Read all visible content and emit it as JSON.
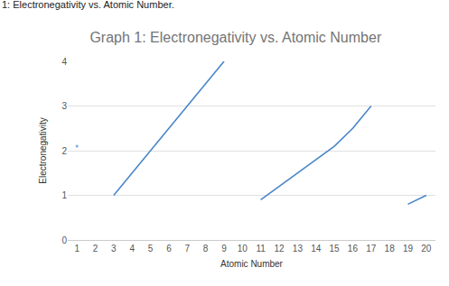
{
  "chart_data": {
    "type": "line",
    "title": "Graph 1: Electronegativity vs. Atomic Number",
    "annotations": [
      "1: Electronegativity vs. Atomic Number."
    ],
    "x_label": "Atomic Number",
    "y_label": "Electronegativity",
    "x": [
      1,
      2,
      3,
      4,
      5,
      6,
      7,
      8,
      9,
      10,
      11,
      12,
      13,
      14,
      15,
      16,
      17,
      18,
      19,
      20
    ],
    "series": [
      {
        "name": "Electronegativity",
        "color": "#4a86c8",
        "marker": "isolated",
        "values": [
          2.1,
          null,
          1.0,
          1.5,
          2.0,
          2.5,
          3.0,
          3.5,
          4.0,
          null,
          0.9,
          1.2,
          1.5,
          1.8,
          2.1,
          2.5,
          3.0,
          null,
          0.8,
          1.0
        ]
      }
    ],
    "xlim": [
      0.5,
      20.5
    ],
    "xticks": [
      1,
      2,
      3,
      4,
      5,
      6,
      7,
      8,
      9,
      10,
      11,
      12,
      13,
      14,
      15,
      16,
      17,
      18,
      19,
      20
    ],
    "ylim": [
      0,
      4
    ],
    "yticks": [
      0,
      1,
      2,
      3,
      4
    ],
    "grid": true
  }
}
